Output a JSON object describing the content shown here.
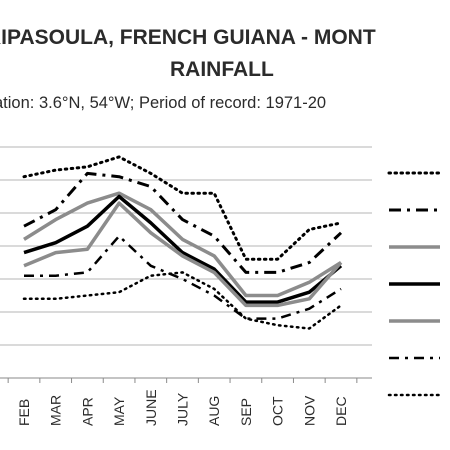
{
  "title_line1": "RIPASOULA, FRENCH GUIANA - MONT",
  "title_line2": "RAINFALL",
  "subtitle": "ation: 3.6°N, 54°W; Period of record: 1971-20",
  "chart_data": {
    "type": "line",
    "title": "RIPASOULA, FRENCH GUIANA - MONT RAINFALL",
    "subtitle": "ation: 3.6°N, 54°W; Period of record: 1971-20",
    "categories": [
      "FEB",
      "MAR",
      "APR",
      "MAY",
      "JUNE",
      "JULY",
      "AUG",
      "SEP",
      "OCT",
      "NOV",
      "DEC"
    ],
    "ylim": [
      0,
      7
    ],
    "grid": true,
    "legend_position": "right",
    "series": [
      {
        "style": "dotted-thick",
        "color": "#000000",
        "values": [
          6.1,
          6.3,
          6.4,
          6.7,
          6.2,
          5.6,
          5.6,
          3.6,
          3.6,
          4.5,
          4.7
        ]
      },
      {
        "style": "dashdot-thick",
        "color": "#000000",
        "values": [
          4.6,
          5.1,
          6.2,
          6.1,
          5.8,
          4.8,
          4.3,
          3.2,
          3.2,
          3.5,
          4.4
        ]
      },
      {
        "style": "solid-gray",
        "color": "#8c8c8c",
        "values": [
          4.2,
          4.8,
          5.3,
          5.6,
          5.1,
          4.2,
          3.7,
          2.5,
          2.5,
          2.9,
          3.5
        ]
      },
      {
        "style": "solid-black",
        "color": "#000000",
        "values": [
          3.8,
          4.1,
          4.6,
          5.5,
          4.7,
          3.8,
          3.3,
          2.3,
          2.3,
          2.6,
          3.4
        ]
      },
      {
        "style": "solid-gray",
        "color": "#8c8c8c",
        "values": [
          3.4,
          3.8,
          3.9,
          5.3,
          4.4,
          3.7,
          3.2,
          2.2,
          2.2,
          2.4,
          3.5
        ]
      },
      {
        "style": "dashdot-thin",
        "color": "#000000",
        "values": [
          3.1,
          3.1,
          3.2,
          4.3,
          3.4,
          3.0,
          2.5,
          1.8,
          1.8,
          2.1,
          2.7
        ]
      },
      {
        "style": "dotted-thin",
        "color": "#000000",
        "values": [
          2.4,
          2.4,
          2.5,
          2.6,
          3.1,
          3.2,
          2.7,
          1.8,
          1.6,
          1.5,
          2.2
        ]
      }
    ]
  }
}
